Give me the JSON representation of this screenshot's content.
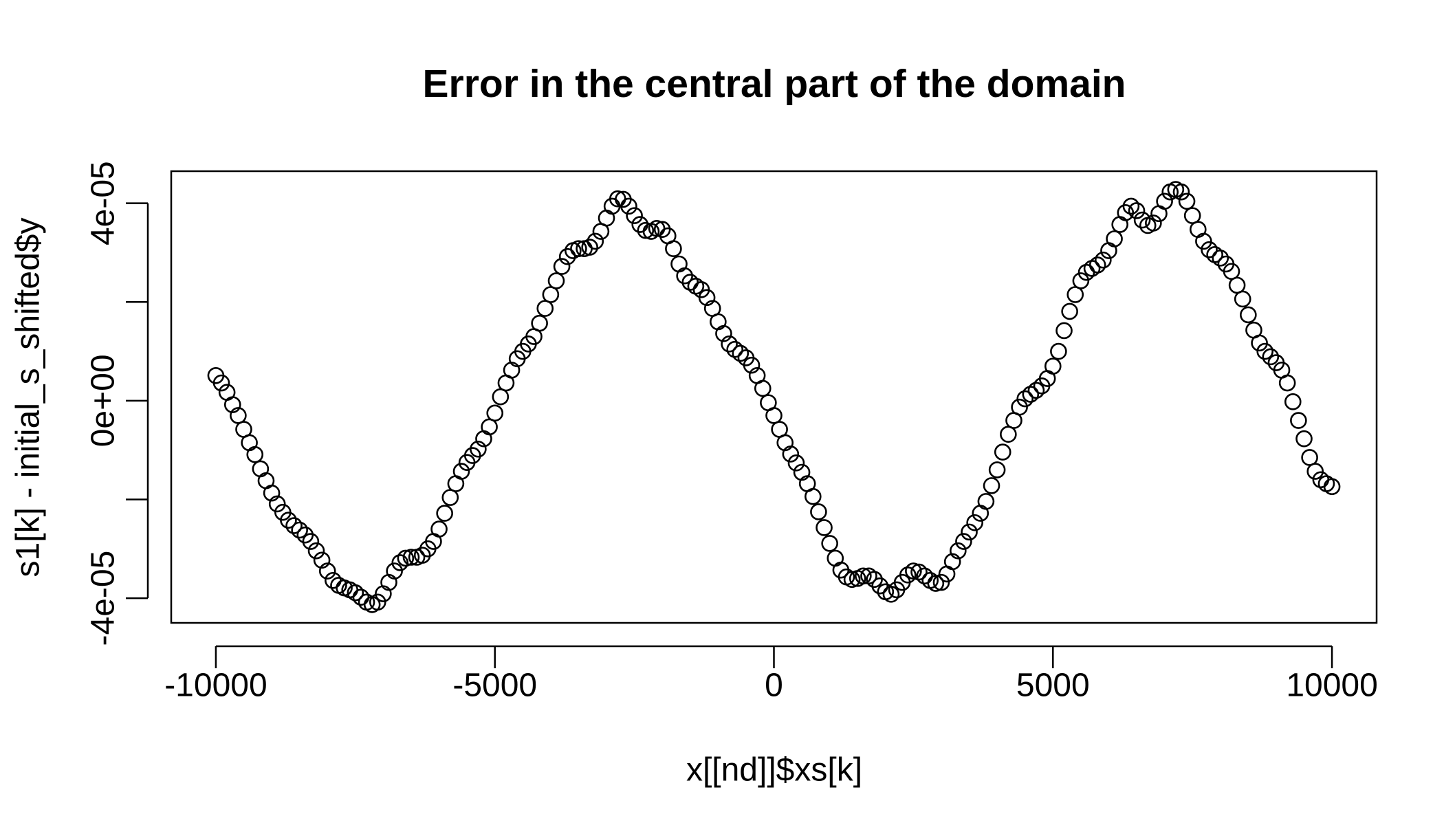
{
  "chart_data": {
    "type": "scatter",
    "title": "Error in the central part of the domain",
    "xlabel": "x[[nd]]$xs[k]",
    "ylabel": "s1[k] - initial_s_shifted$y",
    "color": "#000000",
    "xlim": [
      -10800,
      10800
    ],
    "ylim": [
      -4.5e-05,
      4.65e-05
    ],
    "xticks": [
      -10000,
      -5000,
      0,
      5000,
      10000
    ],
    "yticks": [
      {
        "value": -4e-05,
        "label": "-4e-05"
      },
      {
        "value": -2e-05,
        "label": null
      },
      {
        "value": 0,
        "label": "0e+00"
      },
      {
        "value": 2e-05,
        "label": null
      },
      {
        "value": 4e-05,
        "label": "4e-05"
      }
    ],
    "x": [
      -10000,
      -9900,
      -9800,
      -9700,
      -9600,
      -9500,
      -9400,
      -9300,
      -9200,
      -9100,
      -9000,
      -8900,
      -8800,
      -8700,
      -8600,
      -8500,
      -8400,
      -8300,
      -8200,
      -8100,
      -8000,
      -7900,
      -7800,
      -7700,
      -7600,
      -7500,
      -7400,
      -7300,
      -7200,
      -7100,
      -7000,
      -6900,
      -6800,
      -6700,
      -6600,
      -6500,
      -6400,
      -6300,
      -6200,
      -6100,
      -6000,
      -5900,
      -5800,
      -5700,
      -5600,
      -5500,
      -5400,
      -5300,
      -5200,
      -5100,
      -5000,
      -4900,
      -4800,
      -4700,
      -4600,
      -4500,
      -4400,
      -4300,
      -4200,
      -4100,
      -4000,
      -3900,
      -3800,
      -3700,
      -3600,
      -3500,
      -3400,
      -3300,
      -3200,
      -3100,
      -3000,
      -2900,
      -2800,
      -2700,
      -2600,
      -2500,
      -2400,
      -2300,
      -2200,
      -2100,
      -2000,
      -1900,
      -1800,
      -1700,
      -1600,
      -1500,
      -1400,
      -1300,
      -1200,
      -1100,
      -1000,
      -900,
      -800,
      -700,
      -600,
      -500,
      -400,
      -300,
      -200,
      -100,
      0,
      100,
      200,
      300,
      400,
      500,
      600,
      700,
      800,
      900,
      1000,
      1100,
      1200,
      1300,
      1400,
      1500,
      1600,
      1700,
      1800,
      1900,
      2000,
      2100,
      2200,
      2300,
      2400,
      2500,
      2600,
      2700,
      2800,
      2900,
      3000,
      3100,
      3200,
      3300,
      3400,
      3500,
      3600,
      3700,
      3800,
      3900,
      4000,
      4100,
      4200,
      4300,
      4400,
      4500,
      4600,
      4700,
      4800,
      4900,
      5000,
      5100,
      5200,
      5300,
      5400,
      5500,
      5600,
      5700,
      5800,
      5900,
      6000,
      6100,
      6200,
      6300,
      6400,
      6500,
      6600,
      6700,
      6800,
      6900,
      7000,
      7100,
      7200,
      7300,
      7400,
      7500,
      7600,
      7700,
      7800,
      7900,
      8000,
      8100,
      8200,
      8300,
      8400,
      8500,
      8600,
      8700,
      8800,
      8900,
      9000,
      9100,
      9200,
      9300,
      9400,
      9500,
      9600,
      9700,
      9800,
      9900,
      10000
    ],
    "values": [
      5.1e-06,
      3.6e-06,
      1.7e-06,
      -8e-07,
      -3e-06,
      -5.8e-06,
      -8.5e-06,
      -1.09e-05,
      -1.38e-05,
      -1.62e-05,
      -1.87e-05,
      -2.09e-05,
      -2.26e-05,
      -2.42e-05,
      -2.53e-05,
      -2.62e-05,
      -2.72e-05,
      -2.85e-05,
      -3.04e-05,
      -3.23e-05,
      -3.45e-05,
      -3.64e-05,
      -3.74e-05,
      -3.79e-05,
      -3.83e-05,
      -3.89e-05,
      -3.98e-05,
      -4.08e-05,
      -4.13e-05,
      -4.08e-05,
      -3.91e-05,
      -3.68e-05,
      -3.45e-05,
      -3.28e-05,
      -3.19e-05,
      -3.17e-05,
      -3.17e-05,
      -3.13e-05,
      -3e-05,
      -2.85e-05,
      -2.6e-05,
      -2.28e-05,
      -1.96e-05,
      -1.68e-05,
      -1.43e-05,
      -1.25e-05,
      -1.11e-05,
      -9.8e-06,
      -7.7e-06,
      -5.3e-06,
      -2.5e-06,
      8e-07,
      3.6e-06,
      6.2e-06,
      8.5e-06,
      1e-05,
      1.15e-05,
      1.3e-05,
      1.57e-05,
      1.87e-05,
      2.15e-05,
      2.43e-05,
      2.72e-05,
      2.92e-05,
      3.04e-05,
      3.08e-05,
      3.08e-05,
      3.11e-05,
      3.23e-05,
      3.43e-05,
      3.7e-05,
      3.94e-05,
      4.09e-05,
      4.08e-05,
      3.94e-05,
      3.75e-05,
      3.57e-05,
      3.45e-05,
      3.43e-05,
      3.49e-05,
      3.47e-05,
      3.34e-05,
      3.08e-05,
      2.77e-05,
      2.53e-05,
      2.4e-05,
      2.32e-05,
      2.25e-05,
      2.09e-05,
      1.87e-05,
      1.6e-05,
      1.36e-05,
      1.15e-05,
      1.04e-05,
      9.6e-06,
      8.7e-06,
      7.2e-06,
      5.1e-06,
      2.5e-06,
      -4e-07,
      -3e-06,
      -5.8e-06,
      -8.5e-06,
      -1.08e-05,
      -1.26e-05,
      -1.45e-05,
      -1.68e-05,
      -1.94e-05,
      -2.25e-05,
      -2.57e-05,
      -2.89e-05,
      -3.19e-05,
      -3.43e-05,
      -3.57e-05,
      -3.62e-05,
      -3.6e-05,
      -3.55e-05,
      -3.55e-05,
      -3.62e-05,
      -3.75e-05,
      -3.87e-05,
      -3.92e-05,
      -3.83e-05,
      -3.68e-05,
      -3.53e-05,
      -3.45e-05,
      -3.47e-05,
      -3.55e-05,
      -3.64e-05,
      -3.7e-05,
      -3.68e-05,
      -3.51e-05,
      -3.26e-05,
      -3.04e-05,
      -2.85e-05,
      -2.66e-05,
      -2.47e-05,
      -2.28e-05,
      -2.04e-05,
      -1.72e-05,
      -1.4e-05,
      -1.04e-05,
      -6.8e-06,
      -4e-06,
      -1.3e-06,
      4e-07,
      1.3e-06,
      2.1e-06,
      3e-06,
      4.5e-06,
      7e-06,
      1e-05,
      1.42e-05,
      1.81e-05,
      2.15e-05,
      2.43e-05,
      2.6e-05,
      2.68e-05,
      2.75e-05,
      2.85e-05,
      3.04e-05,
      3.28e-05,
      3.57e-05,
      3.81e-05,
      3.94e-05,
      3.85e-05,
      3.66e-05,
      3.55e-05,
      3.6e-05,
      3.79e-05,
      4.04e-05,
      4.23e-05,
      4.28e-05,
      4.23e-05,
      4.04e-05,
      3.75e-05,
      3.47e-05,
      3.23e-05,
      3.06e-05,
      2.96e-05,
      2.89e-05,
      2.77e-05,
      2.62e-05,
      2.34e-05,
      2.06e-05,
      1.74e-05,
      1.43e-05,
      1.17e-05,
      1e-05,
      8.9e-06,
      7.7e-06,
      6.2e-06,
      3.6e-06,
      -2e-07,
      -4e-06,
      -7.7e-06,
      -1.15e-05,
      -1.43e-05,
      -1.6e-05,
      -1.68e-05,
      -1.74e-05
    ]
  }
}
